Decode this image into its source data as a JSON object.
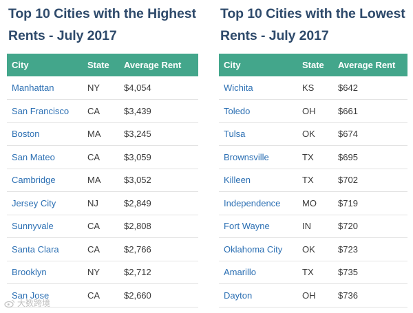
{
  "left": {
    "title_line1": "Top 10 Cities with the Highest",
    "title_line2": "Rents - July 2017",
    "headers": [
      "City",
      "State",
      "Average Rent"
    ],
    "rows": [
      [
        "Manhattan",
        "NY",
        "$4,054"
      ],
      [
        "San Francisco",
        "CA",
        "$3,439"
      ],
      [
        "Boston",
        "MA",
        "$3,245"
      ],
      [
        "San Mateo",
        "CA",
        "$3,059"
      ],
      [
        "Cambridge",
        "MA",
        "$3,052"
      ],
      [
        "Jersey City",
        "NJ",
        "$2,849"
      ],
      [
        "Sunnyvale",
        "CA",
        "$2,808"
      ],
      [
        "Santa Clara",
        "CA",
        "$2,766"
      ],
      [
        "Brooklyn",
        "NY",
        "$2,712"
      ],
      [
        "San Jose",
        "CA",
        "$2,660"
      ]
    ]
  },
  "right": {
    "title_line1": "Top 10 Cities with the Lowest",
    "title_line2": "Rents - July 2017",
    "headers": [
      "City",
      "State",
      "Average Rent"
    ],
    "rows": [
      [
        "Wichita",
        "KS",
        "$642"
      ],
      [
        "Toledo",
        "OH",
        "$661"
      ],
      [
        "Tulsa",
        "OK",
        "$674"
      ],
      [
        "Brownsville",
        "TX",
        "$695"
      ],
      [
        "Killeen",
        "TX",
        "$702"
      ],
      [
        "Independence",
        "MO",
        "$719"
      ],
      [
        "Fort Wayne",
        "IN",
        "$720"
      ],
      [
        "Oklahoma City",
        "OK",
        "$723"
      ],
      [
        "Amarillo",
        "TX",
        "$735"
      ],
      [
        "Dayton",
        "OH",
        "$736"
      ]
    ]
  },
  "watermark": {
    "text": "大数跨境",
    "icon": "weibo-icon"
  },
  "colors": {
    "title": "#2e4a6b",
    "header_bg": "#43a68b",
    "link": "#2b6fb3"
  }
}
